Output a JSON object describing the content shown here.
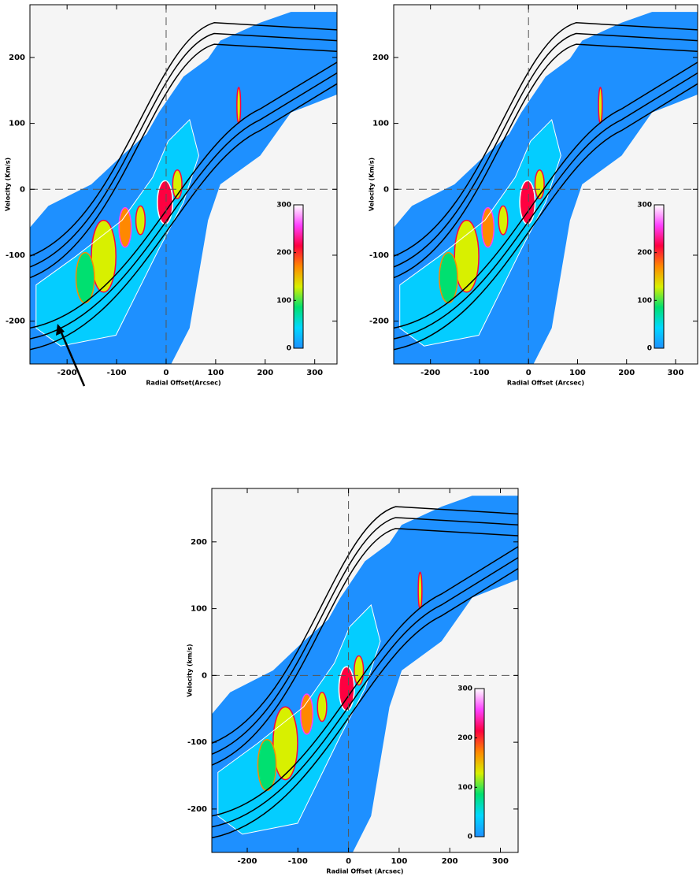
{
  "chart_data": [
    {
      "type": "heatmap",
      "xlabel": "Radial Offset(Arcsec)",
      "ylabel": "Velocity (Km/s)",
      "xlim": [
        -275,
        345
      ],
      "ylim": [
        -265,
        280
      ],
      "xticks": [
        -200,
        -100,
        0,
        100,
        200,
        300
      ],
      "yticks": [
        -200,
        -100,
        0,
        100,
        200
      ],
      "colorbar_lim": [
        0,
        300
      ],
      "colorbar_ticks": [
        0,
        100,
        200,
        300
      ],
      "colormap": [
        "#1e90ff",
        "#00d8ff",
        "#00e070",
        "#d8f000",
        "#ff8800",
        "#ff0040",
        "#ff40ff",
        "#ffffff"
      ]
    },
    {
      "type": "heatmap",
      "xlabel": "Radial Offset (Arcsec)",
      "ylabel": "Velocity (Km/s)",
      "xlim": [
        -275,
        345
      ],
      "ylim": [
        -265,
        280
      ],
      "xticks": [
        -200,
        -100,
        0,
        100,
        200,
        300
      ],
      "yticks": [
        -200,
        -100,
        0,
        100,
        200
      ],
      "colorbar_lim": [
        0,
        300
      ],
      "colorbar_ticks": [
        0,
        100,
        200,
        300
      ],
      "colormap": [
        "#1e90ff",
        "#00d8ff",
        "#00e070",
        "#d8f000",
        "#ff8800",
        "#ff0040",
        "#ff40ff",
        "#ffffff"
      ]
    },
    {
      "type": "heatmap",
      "xlabel": "Radial Offset (Arcsec)",
      "ylabel": "Velocity (km/s)",
      "xlim": [
        -270,
        335
      ],
      "ylim": [
        -265,
        280
      ],
      "xticks": [
        -200,
        -100,
        0,
        100,
        200,
        300
      ],
      "yticks": [
        -200,
        -100,
        0,
        100,
        200
      ],
      "colorbar_lim": [
        0,
        300
      ],
      "colorbar_ticks": [
        0,
        100,
        200,
        300
      ],
      "colormap": [
        "#1e90ff",
        "#00d8ff",
        "#00e070",
        "#d8f000",
        "#ff8800",
        "#ff0040",
        "#ff40ff",
        "#ffffff"
      ]
    }
  ]
}
